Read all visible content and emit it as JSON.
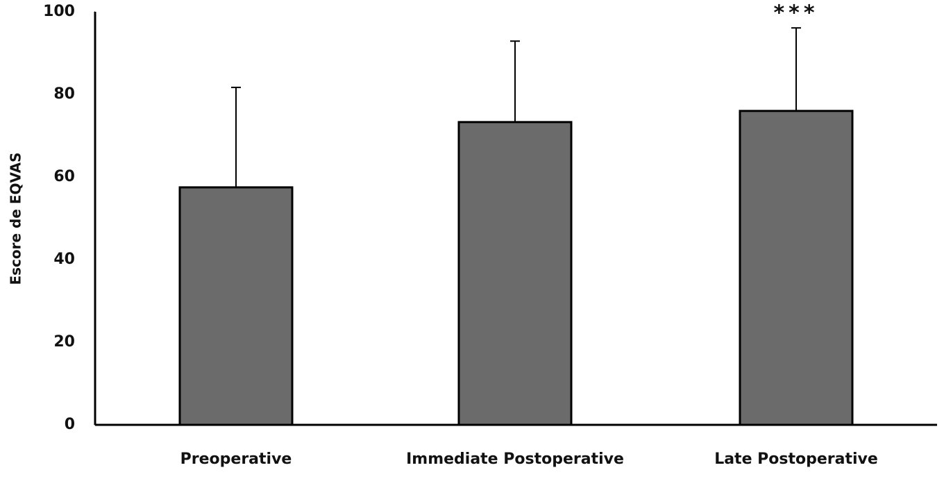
{
  "chart_data": {
    "type": "bar",
    "y_label": "Escore de EQVAS",
    "categories": [
      "Preoperative",
      "Immediate Postoperative",
      "Late Postoperative"
    ],
    "values": [
      57.5,
      73.3,
      76.0
    ],
    "errors": [
      24.2,
      19.6,
      20.1
    ],
    "annotation": "***",
    "color": "#6b6b6b",
    "ylim": [
      0,
      100
    ],
    "yticks": [
      0,
      20,
      40,
      60,
      80,
      100
    ],
    "grid": false
  }
}
